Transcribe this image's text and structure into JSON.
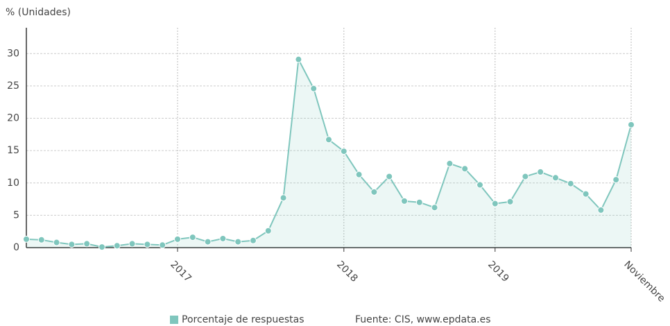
{
  "chart_data": {
    "type": "line",
    "y_label": "% (Unidades)",
    "source": "Fuente: CIS, www.epdata.es",
    "categories": [
      null,
      null,
      null,
      null,
      null,
      null,
      null,
      null,
      null,
      null,
      "2017",
      null,
      null,
      null,
      null,
      null,
      null,
      null,
      null,
      null,
      null,
      "2018",
      null,
      null,
      null,
      null,
      null,
      null,
      null,
      null,
      null,
      "2019",
      null,
      null,
      null,
      null,
      null,
      null,
      null,
      null,
      "Noviembre"
    ],
    "series": [
      {
        "name": "Porcentaje de respuestas",
        "color": "#7fc6bd",
        "values": [
          1.3,
          1.2,
          0.8,
          0.5,
          0.6,
          0.1,
          0.3,
          0.6,
          0.5,
          0.4,
          1.3,
          1.6,
          0.9,
          1.4,
          0.9,
          1.1,
          2.6,
          7.7,
          29.1,
          24.6,
          16.7,
          14.9,
          11.3,
          8.6,
          11.0,
          7.2,
          7.0,
          6.2,
          13.0,
          12.2,
          9.7,
          6.8,
          7.1,
          11.0,
          11.7,
          10.8,
          9.9,
          8.3,
          5.8,
          10.5,
          19.0
        ]
      }
    ],
    "ylim": [
      0,
      34
    ],
    "yticks": [
      0,
      5,
      10,
      15,
      20,
      25,
      30
    ],
    "grid": true
  }
}
